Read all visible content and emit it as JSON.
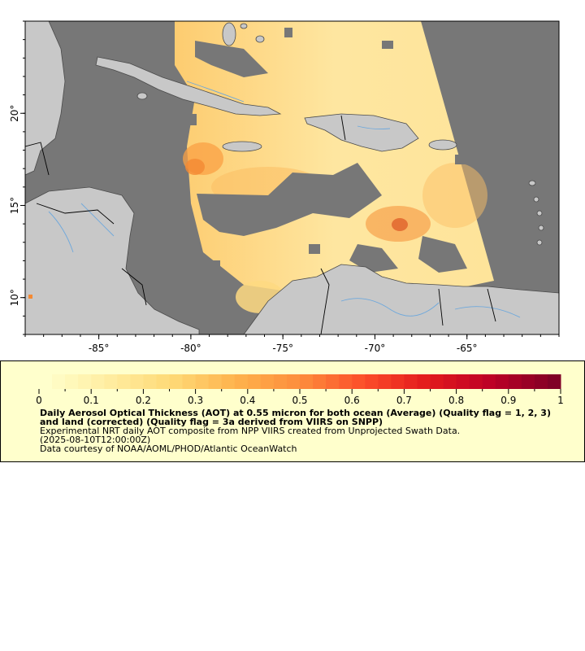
{
  "map": {
    "colors": {
      "land": "#c8c8c8",
      "no_data": "#777777",
      "border": "#000000",
      "rivers": "#6ea8dc",
      "coast": "#4a4a4a"
    },
    "x_axis": {
      "ticks": [
        {
          "value": -85,
          "label": "-85°"
        },
        {
          "value": -80,
          "label": "-80°"
        },
        {
          "value": -75,
          "label": "-75°"
        },
        {
          "value": -70,
          "label": "-70°"
        },
        {
          "value": -65,
          "label": "-65°"
        }
      ]
    },
    "y_axis": {
      "ticks": [
        {
          "value": 20,
          "label": "20°"
        },
        {
          "value": 15,
          "label": "15°"
        },
        {
          "value": 10,
          "label": "10°"
        }
      ]
    },
    "extent": {
      "lon_min": -89,
      "lon_max": -60,
      "lat_min": 8,
      "lat_max": 25
    }
  },
  "legend": {
    "scale_min": 0,
    "scale_max": 1,
    "tick_labels": [
      "0",
      "0.1",
      "0.2",
      "0.3",
      "0.4",
      "0.5",
      "0.6",
      "0.7",
      "0.8",
      "0.9",
      "1"
    ],
    "title": "Daily Aerosol Optical Thickness (AOT) at 0.55 micron for both ocean (Average) (Quality flag = 1, 2, 3) and land (corrected) (Quality flag = 3a derived from VIIRS on SNPP)",
    "subtitle": "Experimental NRT daily AOT composite from NPP VIIRS created from Unprojected Swath Data.",
    "date": "(2025-08-10T12:00:00Z)",
    "credit": "Data courtesy of NOAA/AOML/PHOD/Atlantic OceanWatch",
    "colors": [
      "#ffffcc",
      "#ffeda0",
      "#fed976",
      "#feb24c",
      "#fd8d3c",
      "#fc4e2a",
      "#e31a1c",
      "#bd0026",
      "#800026"
    ]
  }
}
